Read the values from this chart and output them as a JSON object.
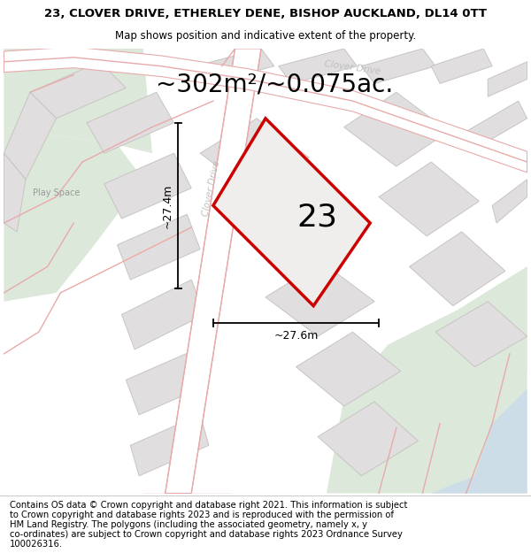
{
  "title_line1": "23, CLOVER DRIVE, ETHERLEY DENE, BISHOP AUCKLAND, DL14 0TT",
  "title_line2": "Map shows position and indicative extent of the property.",
  "area_label": "~302m²/~0.075ac.",
  "plot_number": "23",
  "width_label": "~27.6m",
  "height_label": "~27.4m",
  "footer_lines": [
    "Contains OS data © Crown copyright and database right 2021. This information is subject",
    "to Crown copyright and database rights 2023 and is reproduced with the permission of",
    "HM Land Registry. The polygons (including the associated geometry, namely x, y",
    "co-ordinates) are subject to Crown copyright and database rights 2023 Ordnance Survey",
    "100026316."
  ],
  "bg_map": "#f7f5f5",
  "plot_fill": "#f0eeed",
  "plot_edge": "#cc0000",
  "road_color": "#e8aaaa",
  "road_label_color": "#c0c0c0",
  "green_color": "#dce8da",
  "blue_color": "#ccdde8",
  "grey_block": "#e0dede",
  "grey_block_edge": "#c8c4c4",
  "title_fontsize": 9.5,
  "subtitle_fontsize": 8.5,
  "area_fontsize": 20,
  "plot_number_fontsize": 26,
  "dim_fontsize": 9,
  "footer_fontsize": 7.2,
  "clover_drive_diagonal_label": "Clover Drive",
  "clover_drive_top_label": "Clover Drive",
  "play_space_label": "Play Space"
}
